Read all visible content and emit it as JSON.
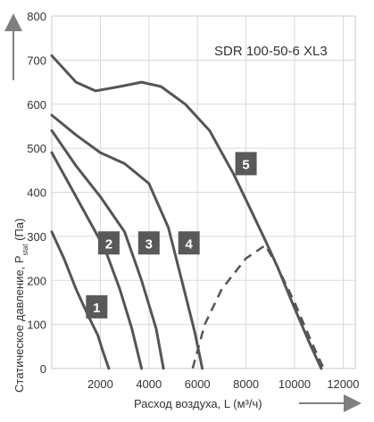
{
  "chart_data": {
    "type": "line",
    "title": "SDR 100-50-6 XL3",
    "xlabel": "Расход воздуха, L (м³/ч)",
    "ylabel": {
      "main": "Статическое давление, P",
      "sub": "stat",
      "unit": " (Па)"
    },
    "xlim": [
      0,
      12500
    ],
    "ylim": [
      0,
      800
    ],
    "xticks": [
      2000,
      4000,
      6000,
      8000,
      10000,
      12000
    ],
    "yticks": [
      0,
      100,
      200,
      300,
      400,
      500,
      600,
      700,
      800
    ],
    "xtick_labels": [
      "2000",
      "4000",
      "6000",
      "8000",
      "10000",
      "12000"
    ],
    "ytick_labels": [
      "0",
      "100",
      "200",
      "300",
      "400",
      "500",
      "600",
      "700",
      "800"
    ],
    "grid": true,
    "series": [
      {
        "marker_label": "1",
        "marker_at": [
          1850,
          140
        ],
        "points": [
          [
            0,
            310
          ],
          [
            500,
            250
          ],
          [
            1000,
            180
          ],
          [
            1500,
            120
          ],
          [
            1900,
            75
          ],
          [
            2100,
            40
          ],
          [
            2350,
            0
          ]
        ]
      },
      {
        "marker_label": "2",
        "marker_at": [
          2350,
          285
        ],
        "points": [
          [
            0,
            490
          ],
          [
            800,
            410
          ],
          [
            1500,
            340
          ],
          [
            2200,
            270
          ],
          [
            2800,
            180
          ],
          [
            3300,
            90
          ],
          [
            3700,
            0
          ]
        ]
      },
      {
        "marker_label": "3",
        "marker_at": [
          4000,
          285
        ],
        "points": [
          [
            0,
            540
          ],
          [
            1000,
            460
          ],
          [
            2000,
            390
          ],
          [
            3000,
            310
          ],
          [
            3700,
            200
          ],
          [
            4300,
            90
          ],
          [
            4600,
            0
          ]
        ]
      },
      {
        "marker_label": "4",
        "marker_at": [
          5650,
          285
        ],
        "points": [
          [
            0,
            575
          ],
          [
            1000,
            530
          ],
          [
            2000,
            490
          ],
          [
            3000,
            465
          ],
          [
            4000,
            420
          ],
          [
            4800,
            320
          ],
          [
            5400,
            190
          ],
          [
            5900,
            80
          ],
          [
            6200,
            0
          ]
        ]
      },
      {
        "marker_label": "5",
        "marker_at": [
          8000,
          465
        ],
        "points": [
          [
            0,
            710
          ],
          [
            1000,
            650
          ],
          [
            1800,
            630
          ],
          [
            2800,
            640
          ],
          [
            3700,
            650
          ],
          [
            4500,
            640
          ],
          [
            5500,
            600
          ],
          [
            6500,
            540
          ],
          [
            7500,
            440
          ],
          [
            8200,
            360
          ],
          [
            8800,
            290
          ],
          [
            9300,
            230
          ],
          [
            9900,
            150
          ],
          [
            10600,
            60
          ],
          [
            11100,
            0
          ]
        ]
      }
    ],
    "system_curve": [
      [
        5800,
        0
      ],
      [
        6300,
        100
      ],
      [
        7000,
        180
      ],
      [
        8000,
        250
      ],
      [
        8800,
        280
      ],
      [
        9300,
        230
      ],
      [
        10000,
        150
      ],
      [
        10700,
        60
      ],
      [
        11200,
        0
      ]
    ]
  }
}
